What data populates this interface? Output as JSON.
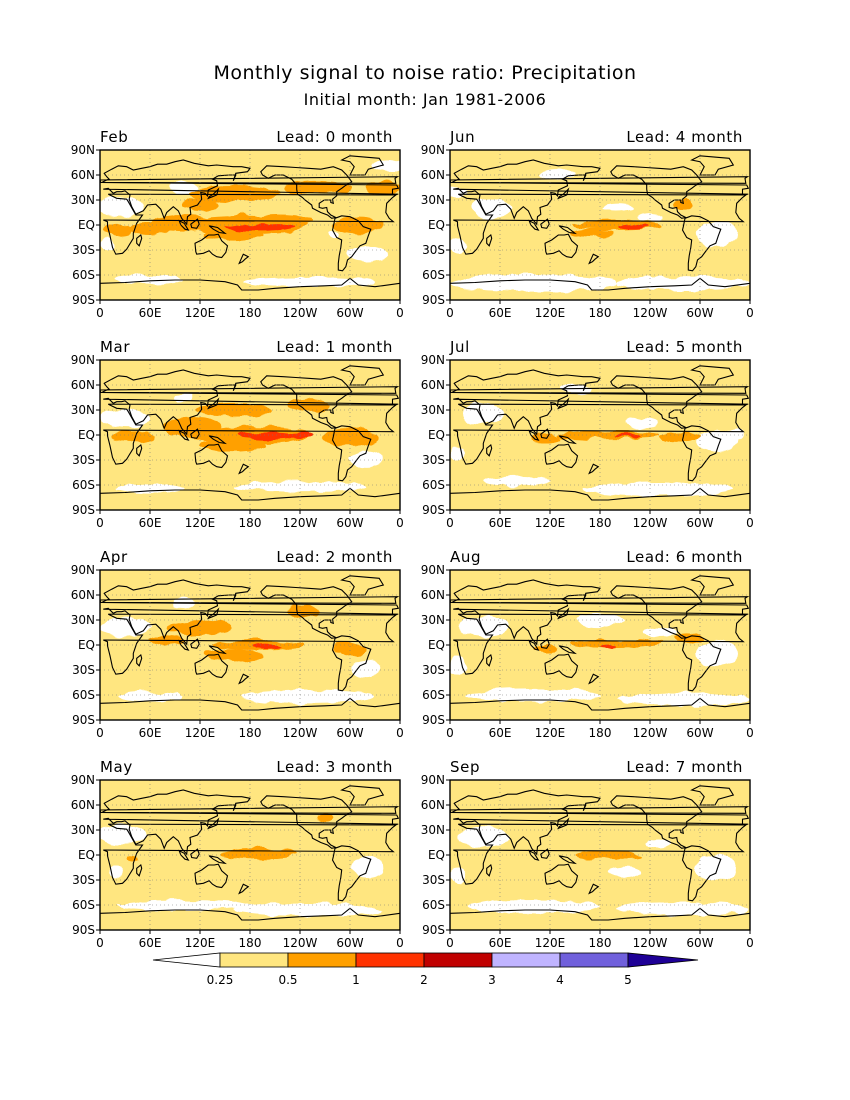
{
  "chart_data": {
    "type": "heatmap",
    "title": "Monthly signal to noise ratio: Precipitation",
    "subtitle": "Initial month: Jan 1981-2006",
    "x_ticks": [
      "0",
      "60E",
      "120E",
      "180",
      "120W",
      "60W",
      "0"
    ],
    "y_ticks": [
      "90N",
      "60N",
      "30N",
      "EQ",
      "30S",
      "60S",
      "90S"
    ],
    "xlim_deg_east": [
      0,
      360
    ],
    "ylim_deg": [
      -90,
      90
    ],
    "colorbar": {
      "ticks": [
        "0.25",
        "0.5",
        "1",
        "2",
        "3",
        "4",
        "5"
      ],
      "colors": [
        "#ffffff",
        "#ffe680",
        "#ffa000",
        "#ff3200",
        "#c00000",
        "#c0b4ff",
        "#7060dc",
        "#1e0096"
      ]
    },
    "panels": [
      {
        "month": "Feb",
        "lead": "Lead: 0 month",
        "lead_months": 0,
        "pacific_max_class": "1-2",
        "coverage": "widespread 0.5-1 over tropics and storm tracks"
      },
      {
        "month": "Jun",
        "lead": "Lead: 4 month",
        "lead_months": 4,
        "pacific_max_class": "1-2",
        "coverage": "0.5-1 confined to equatorial Pacific"
      },
      {
        "month": "Mar",
        "lead": "Lead: 1 month",
        "lead_months": 1,
        "pacific_max_class": "1-2",
        "coverage": "broad 0.5-1 across tropical belt"
      },
      {
        "month": "Jul",
        "lead": "Lead: 5 month",
        "lead_months": 5,
        "pacific_max_class": "1-2",
        "coverage": "0.5-1 narrow equatorial Pacific band"
      },
      {
        "month": "Apr",
        "lead": "Lead: 2 month",
        "lead_months": 2,
        "pacific_max_class": "1-2",
        "coverage": "0.5-1 central Pacific and SPCZ"
      },
      {
        "month": "Aug",
        "lead": "Lead: 6 month",
        "lead_months": 6,
        "pacific_max_class": "1-2",
        "coverage": "0.5-1 equatorial Pacific band"
      },
      {
        "month": "May",
        "lead": "Lead: 3 month",
        "lead_months": 3,
        "pacific_max_class": "0.5-1",
        "coverage": "0.5-1 central equatorial Pacific"
      },
      {
        "month": "Sep",
        "lead": "Lead: 7 month",
        "lead_months": 7,
        "pacific_max_class": "0.5-1",
        "coverage": "0.5-1 small equatorial Pacific patch"
      }
    ]
  }
}
